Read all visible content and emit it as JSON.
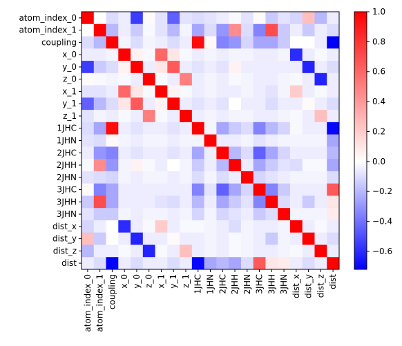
{
  "chart_data": {
    "type": "heatmap",
    "title": "",
    "xlabel": "",
    "ylabel": "",
    "labels": [
      "atom_index_0",
      "atom_index_1",
      "coupling",
      "x_0",
      "y_0",
      "z_0",
      "x_1",
      "y_1",
      "z_1",
      "1JHC",
      "1JHN",
      "2JHC",
      "2JHH",
      "2JHN",
      "3JHC",
      "3JHH",
      "3JHN",
      "dist_x",
      "dist_y",
      "dist_z",
      "dist"
    ],
    "colorscale": {
      "name": "bwr",
      "vmin": -0.72,
      "vmax": 1.0,
      "ticks": [
        1.0,
        0.8,
        0.6,
        0.4,
        0.2,
        0.0,
        -0.2,
        -0.4,
        -0.6
      ],
      "tick_labels": [
        "1.0",
        "0.8",
        "0.6",
        "0.4",
        "0.2",
        "0.0",
        "−0.2",
        "−0.4",
        "−0.6"
      ]
    },
    "matrix": [
      [
        1.0,
        0.0,
        -0.1,
        -0.05,
        -0.55,
        0.02,
        -0.08,
        -0.45,
        -0.08,
        -0.1,
        -0.08,
        -0.05,
        -0.02,
        -0.08,
        0.02,
        -0.15,
        -0.08,
        -0.12,
        0.25,
        -0.2,
        -0.05
      ],
      [
        0.0,
        1.0,
        -0.2,
        -0.05,
        -0.15,
        -0.02,
        -0.08,
        -0.2,
        -0.03,
        -0.25,
        -0.1,
        -0.3,
        0.45,
        -0.1,
        -0.35,
        0.7,
        -0.15,
        -0.05,
        -0.15,
        -0.05,
        -0.1
      ],
      [
        -0.1,
        -0.2,
        1.0,
        -0.03,
        -0.1,
        -0.03,
        -0.05,
        -0.1,
        -0.05,
        0.95,
        0.02,
        -0.35,
        -0.3,
        -0.12,
        -0.25,
        -0.25,
        -0.15,
        0.0,
        0.0,
        -0.05,
        -0.72
      ],
      [
        -0.05,
        -0.05,
        -0.03,
        1.0,
        0.05,
        -0.02,
        0.6,
        0.1,
        -0.02,
        -0.05,
        -0.03,
        -0.05,
        -0.03,
        -0.03,
        -0.05,
        -0.05,
        -0.03,
        -0.6,
        -0.05,
        -0.02,
        -0.05
      ],
      [
        -0.55,
        -0.15,
        -0.1,
        0.05,
        1.0,
        -0.05,
        0.1,
        0.65,
        -0.05,
        -0.08,
        -0.05,
        -0.08,
        0.05,
        -0.05,
        -0.05,
        -0.05,
        -0.05,
        -0.05,
        -0.62,
        -0.05,
        -0.1
      ],
      [
        0.02,
        -0.02,
        -0.03,
        -0.02,
        -0.05,
        1.0,
        -0.02,
        -0.05,
        0.5,
        -0.05,
        -0.03,
        -0.05,
        -0.02,
        -0.03,
        -0.05,
        -0.05,
        -0.03,
        -0.02,
        -0.05,
        -0.62,
        -0.05
      ],
      [
        -0.08,
        -0.08,
        -0.05,
        0.6,
        0.1,
        -0.02,
        1.0,
        0.05,
        -0.02,
        -0.05,
        -0.03,
        -0.05,
        -0.05,
        -0.03,
        -0.05,
        -0.08,
        -0.03,
        0.2,
        -0.05,
        -0.02,
        -0.05
      ],
      [
        -0.45,
        -0.2,
        -0.1,
        0.1,
        0.65,
        -0.05,
        0.05,
        1.0,
        -0.05,
        -0.08,
        -0.05,
        -0.08,
        0.0,
        -0.05,
        -0.05,
        -0.1,
        -0.05,
        -0.05,
        0.02,
        -0.05,
        -0.1
      ],
      [
        -0.08,
        -0.03,
        -0.05,
        -0.02,
        -0.05,
        0.5,
        -0.02,
        -0.05,
        1.0,
        -0.05,
        -0.03,
        -0.05,
        -0.03,
        -0.03,
        -0.05,
        -0.05,
        -0.03,
        -0.02,
        -0.05,
        0.25,
        -0.05
      ],
      [
        -0.1,
        -0.25,
        0.95,
        -0.05,
        -0.08,
        -0.05,
        -0.05,
        -0.08,
        -0.05,
        1.0,
        -0.03,
        -0.25,
        -0.15,
        -0.1,
        -0.35,
        -0.2,
        -0.12,
        -0.02,
        -0.05,
        -0.05,
        -0.7
      ],
      [
        -0.08,
        -0.1,
        0.02,
        -0.03,
        -0.05,
        -0.03,
        -0.03,
        -0.05,
        -0.03,
        -0.03,
        1.0,
        -0.05,
        -0.05,
        -0.03,
        -0.08,
        -0.05,
        -0.03,
        -0.03,
        -0.03,
        -0.03,
        -0.25
      ],
      [
        -0.05,
        -0.3,
        -0.35,
        -0.05,
        -0.08,
        -0.05,
        -0.05,
        -0.08,
        -0.05,
        -0.25,
        -0.05,
        1.0,
        -0.2,
        -0.1,
        -0.45,
        -0.25,
        -0.12,
        -0.05,
        -0.05,
        -0.05,
        -0.2
      ],
      [
        -0.02,
        0.45,
        -0.3,
        -0.03,
        0.05,
        -0.02,
        -0.05,
        0.0,
        -0.03,
        -0.15,
        -0.05,
        -0.2,
        1.0,
        -0.05,
        -0.25,
        -0.15,
        -0.08,
        -0.1,
        -0.02,
        -0.02,
        -0.25
      ],
      [
        -0.08,
        -0.1,
        -0.12,
        -0.03,
        -0.05,
        -0.03,
        -0.03,
        -0.05,
        -0.03,
        -0.1,
        -0.03,
        -0.1,
        -0.05,
        1.0,
        -0.12,
        -0.08,
        -0.05,
        -0.03,
        -0.03,
        -0.03,
        -0.1
      ],
      [
        0.02,
        -0.35,
        -0.25,
        -0.05,
        -0.05,
        -0.05,
        -0.05,
        -0.05,
        -0.05,
        -0.35,
        -0.08,
        -0.45,
        -0.25,
        -0.12,
        1.0,
        -0.35,
        -0.15,
        -0.05,
        -0.05,
        -0.05,
        0.65
      ],
      [
        -0.15,
        0.7,
        -0.25,
        -0.05,
        -0.05,
        -0.05,
        -0.08,
        -0.1,
        -0.05,
        -0.2,
        -0.05,
        -0.25,
        -0.15,
        -0.08,
        -0.35,
        1.0,
        -0.1,
        -0.05,
        -0.15,
        -0.05,
        0.1
      ],
      [
        -0.08,
        -0.15,
        -0.15,
        -0.03,
        -0.05,
        -0.03,
        -0.03,
        -0.05,
        -0.03,
        -0.12,
        -0.03,
        -0.12,
        -0.08,
        -0.05,
        -0.15,
        -0.1,
        1.0,
        -0.03,
        -0.03,
        -0.03,
        0.08
      ],
      [
        -0.12,
        -0.05,
        0.0,
        -0.6,
        -0.05,
        -0.02,
        0.2,
        -0.05,
        -0.02,
        -0.02,
        -0.03,
        -0.05,
        -0.1,
        -0.03,
        -0.05,
        -0.05,
        -0.03,
        1.0,
        -0.05,
        -0.02,
        -0.05
      ],
      [
        0.25,
        -0.15,
        0.0,
        -0.05,
        -0.62,
        -0.05,
        -0.05,
        0.02,
        -0.05,
        -0.05,
        -0.03,
        -0.05,
        -0.02,
        -0.03,
        -0.05,
        -0.15,
        -0.03,
        -0.05,
        1.0,
        -0.05,
        -0.1
      ],
      [
        -0.2,
        -0.05,
        -0.05,
        -0.02,
        -0.05,
        -0.62,
        -0.02,
        -0.05,
        0.25,
        -0.05,
        -0.03,
        -0.05,
        -0.02,
        -0.03,
        -0.05,
        -0.05,
        -0.03,
        -0.02,
        -0.05,
        1.0,
        -0.05
      ],
      [
        -0.05,
        -0.1,
        -0.72,
        -0.05,
        -0.1,
        -0.05,
        -0.05,
        -0.1,
        -0.05,
        -0.7,
        -0.25,
        -0.2,
        -0.25,
        -0.1,
        0.65,
        0.1,
        0.08,
        -0.05,
        -0.1,
        -0.05,
        1.0
      ]
    ]
  }
}
